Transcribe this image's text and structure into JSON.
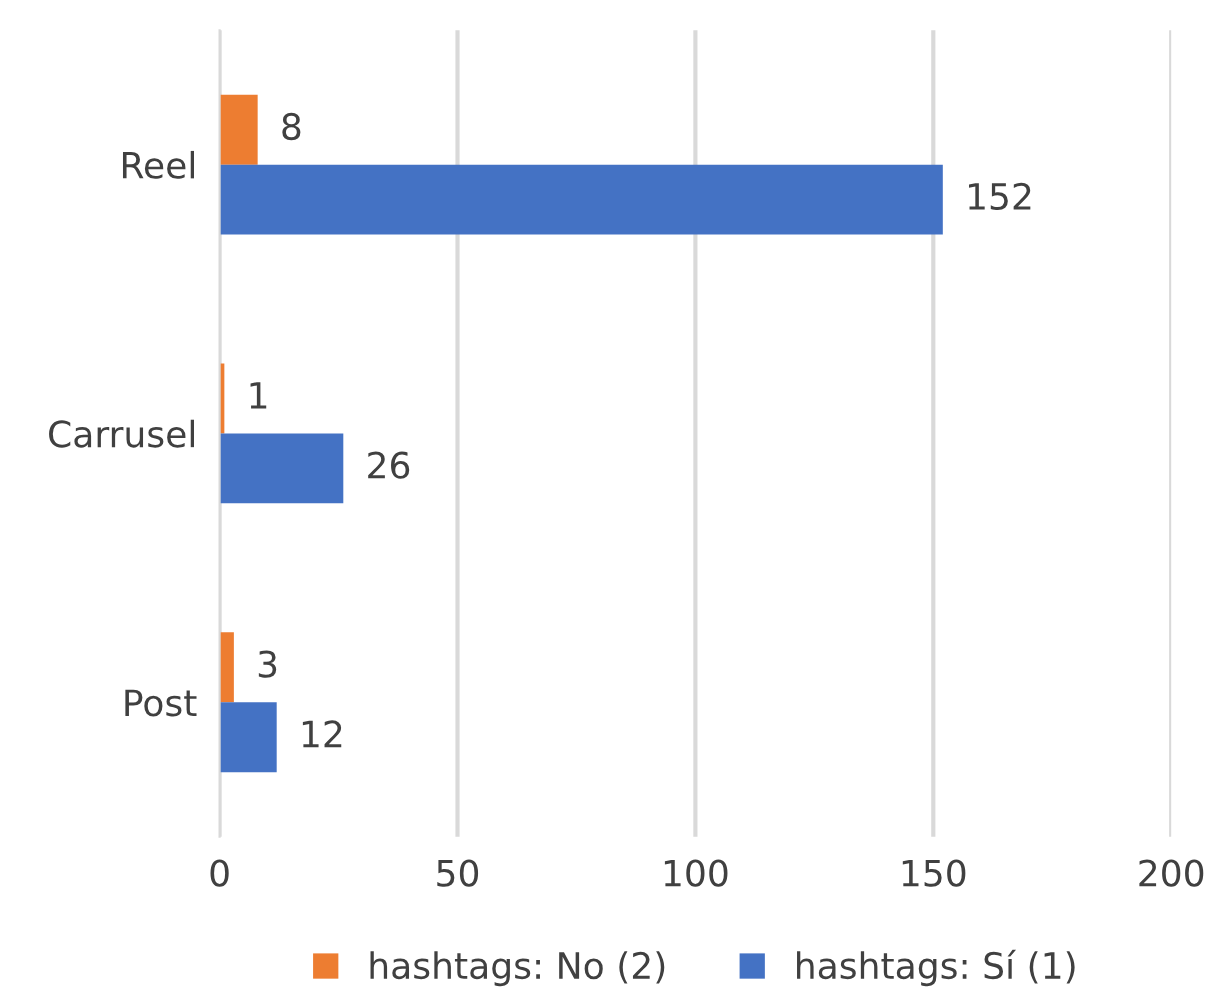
{
  "chart_data": {
    "type": "bar",
    "orientation": "horizontal",
    "categories": [
      "Reel",
      "Carrusel",
      "Post"
    ],
    "series": [
      {
        "name": "hashtags: No (2)",
        "color": "#ed7d31",
        "values": [
          8,
          1,
          3
        ]
      },
      {
        "name": "hashtags: Sí (1)",
        "color": "#4472c4",
        "values": [
          152,
          26,
          12
        ]
      }
    ],
    "xlim": [
      0,
      200
    ],
    "xticks": [
      0,
      50,
      100,
      150,
      200
    ],
    "grid": "x",
    "legend": "bottom",
    "data_labels": true
  }
}
